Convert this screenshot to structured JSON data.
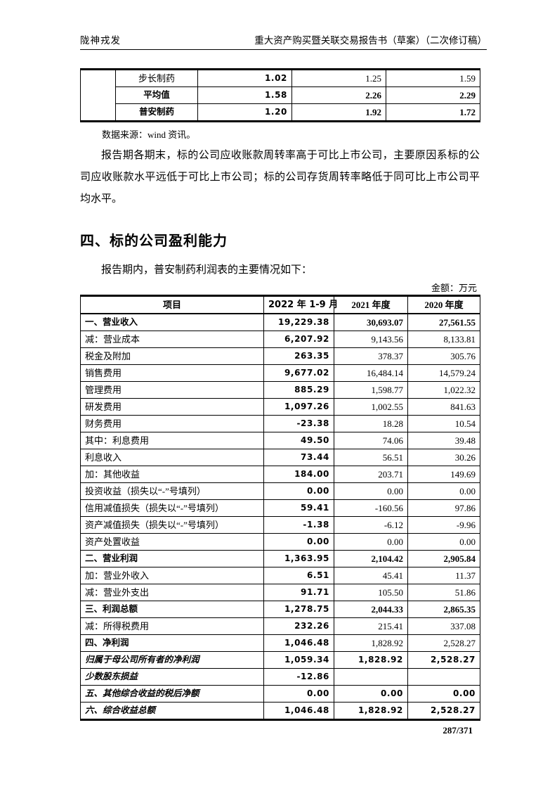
{
  "header": {
    "company": "陇神戎发",
    "title": "重大资产购买暨关联交易报告书（草案）（二次修订稿）"
  },
  "footer": {
    "page_number": "287/371"
  },
  "ratio_table": {
    "rows": [
      {
        "name": "步长制药",
        "v2022": "1.02",
        "v2021": "1.25",
        "v2020": "1.59",
        "emphasis": false
      },
      {
        "name": "平均值",
        "v2022": "1.58",
        "v2021": "2.26",
        "v2020": "2.29",
        "emphasis": true
      },
      {
        "name": "普安制药",
        "v2022": "1.20",
        "v2021": "1.92",
        "v2020": "1.72",
        "emphasis": true
      }
    ],
    "source_note": "数据来源：wind 资讯。"
  },
  "paragraph1": "报告期各期末，标的公司应收账款周转率高于可比上市公司，主要原因系标的公司应收账款水平远低于可比上市公司；标的公司存货周转率略低于同可比上市公司平均水平。",
  "section": {
    "heading": "四、标的公司盈利能力",
    "intro": "报告期内，普安制药利润表的主要情况如下：",
    "unit_note": "金额：万元"
  },
  "income_table": {
    "headers": [
      "项目",
      "2022 年 1-9 月",
      "2021 年度",
      "2020 年度"
    ],
    "rows": [
      {
        "label": "一、营业收入",
        "indent": 0,
        "style": "section",
        "v1": "19,229.38",
        "v2": "30,693.07",
        "v3": "27,561.55"
      },
      {
        "label": "减：营业成本",
        "indent": 0,
        "style": "plain",
        "v1": "6,207.92",
        "v2": "9,143.56",
        "v3": "8,133.81"
      },
      {
        "label": "税金及附加",
        "indent": 1,
        "style": "plain",
        "v1": "263.35",
        "v2": "378.37",
        "v3": "305.76"
      },
      {
        "label": "销售费用",
        "indent": 1,
        "style": "plain",
        "v1": "9,677.02",
        "v2": "16,484.14",
        "v3": "14,579.24"
      },
      {
        "label": "管理费用",
        "indent": 1,
        "style": "plain",
        "v1": "885.29",
        "v2": "1,598.77",
        "v3": "1,022.32"
      },
      {
        "label": "研发费用",
        "indent": 1,
        "style": "plain",
        "v1": "1,097.26",
        "v2": "1,002.55",
        "v3": "841.63"
      },
      {
        "label": "财务费用",
        "indent": 1,
        "style": "plain",
        "v1": "-23.38",
        "v2": "18.28",
        "v3": "10.54"
      },
      {
        "label": "其中：利息费用",
        "indent": 1,
        "style": "plain",
        "v1": "49.50",
        "v2": "74.06",
        "v3": "39.48"
      },
      {
        "label": "利息收入",
        "indent": 2,
        "style": "plain",
        "v1": "73.44",
        "v2": "56.51",
        "v3": "30.26"
      },
      {
        "label": "加：其他收益",
        "indent": 0,
        "style": "plain",
        "v1": "184.00",
        "v2": "203.71",
        "v3": "149.69"
      },
      {
        "label": "投资收益（损失以“-”号填列）",
        "indent": 1,
        "style": "plain",
        "v1": "0.00",
        "v2": "0.00",
        "v3": "0.00"
      },
      {
        "label": "信用减值损失（损失以“-”号填列）",
        "indent": 1,
        "style": "plain",
        "v1": "59.41",
        "v2": "-160.56",
        "v3": "97.86"
      },
      {
        "label": "资产减值损失（损失以“-”号填列）",
        "indent": 1,
        "style": "plain",
        "v1": "-1.38",
        "v2": "-6.12",
        "v3": "-9.96"
      },
      {
        "label": "资产处置收益",
        "indent": 1,
        "style": "plain",
        "v1": "0.00",
        "v2": "0.00",
        "v3": "0.00"
      },
      {
        "label": "二、营业利润",
        "indent": 0,
        "style": "section",
        "v1": "1,363.95",
        "v2": "2,104.42",
        "v3": "2,905.84"
      },
      {
        "label": "加：营业外收入",
        "indent": 0,
        "style": "plain",
        "v1": "6.51",
        "v2": "45.41",
        "v3": "11.37"
      },
      {
        "label": "减：营业外支出",
        "indent": 0,
        "style": "plain",
        "v1": "91.71",
        "v2": "105.50",
        "v3": "51.86"
      },
      {
        "label": "三、利润总额",
        "indent": 0,
        "style": "section",
        "v1": "1,278.75",
        "v2": "2,044.33",
        "v3": "2,865.35"
      },
      {
        "label": "减：所得税费用",
        "indent": 0,
        "style": "plain",
        "v1": "232.26",
        "v2": "215.41",
        "v3": "337.08"
      },
      {
        "label": "四、净利润",
        "indent": 0,
        "style": "section-plain",
        "v1": "1,046.48",
        "v2": "1,828.92",
        "v3": "2,528.27"
      },
      {
        "label": "归属于母公司所有者的净利润",
        "indent": 0,
        "style": "kai",
        "v1": "1,059.34",
        "v2": "1,828.92",
        "v3": "2,528.27"
      },
      {
        "label": "少数股东损益",
        "indent": 0,
        "style": "kai",
        "v1": "-12.86",
        "v2": "",
        "v3": ""
      },
      {
        "label": "五、其他综合收益的税后净额",
        "indent": 0,
        "style": "kai",
        "v1": "0.00",
        "v2": "0.00",
        "v3": "0.00"
      },
      {
        "label": "六、综合收益总额",
        "indent": 0,
        "style": "kai",
        "v1": "1,046.48",
        "v2": "1,828.92",
        "v3": "2,528.27"
      }
    ]
  }
}
